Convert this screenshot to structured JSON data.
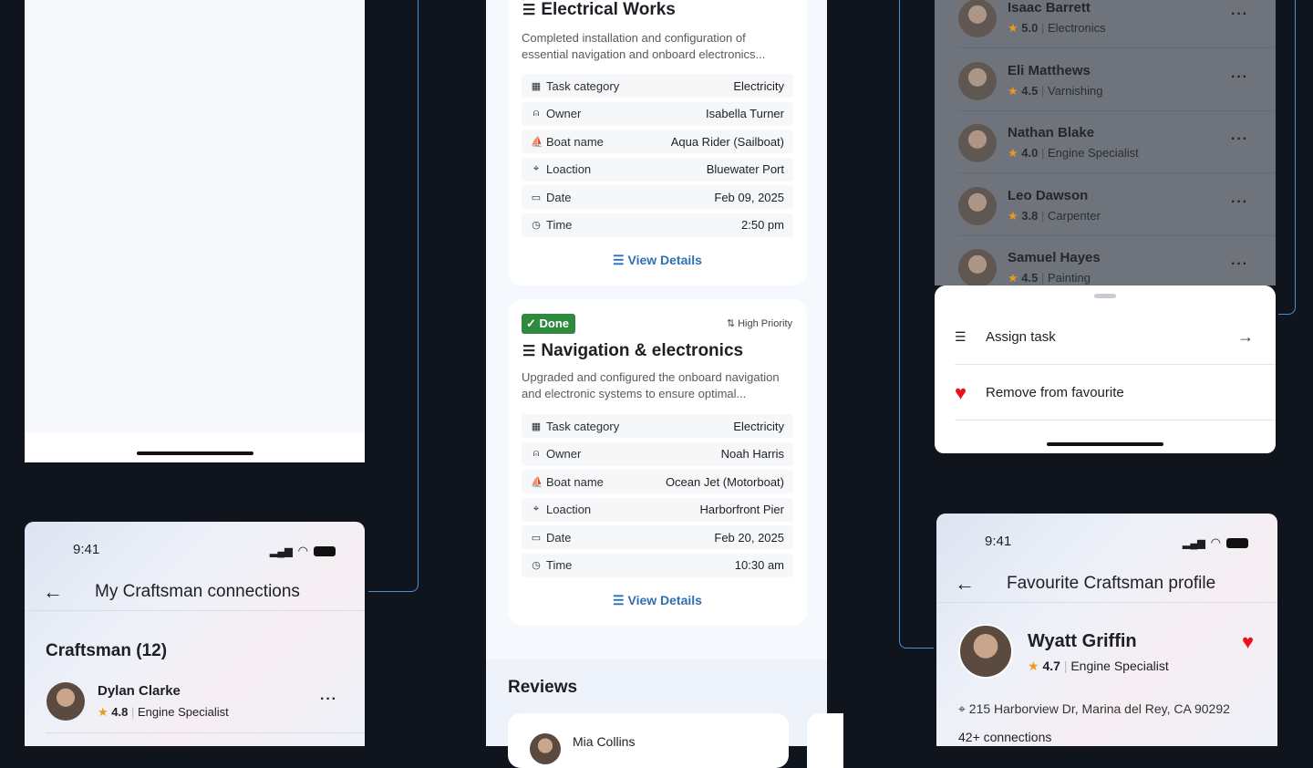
{
  "connections_screen": {
    "time": "9:41",
    "title": "My Craftsman connections",
    "section": "Craftsman (12)",
    "items": [
      {
        "name": "Dylan Clarke",
        "rating": "4.8",
        "specialty": "Engine Specialist"
      }
    ]
  },
  "tasks": [
    {
      "title": "Electrical Works",
      "description": "Completed installation and configuration of essential navigation and onboard electronics...",
      "rows": [
        {
          "label": "Task category",
          "value": "Electricity"
        },
        {
          "label": "Owner",
          "value": "Isabella Turner"
        },
        {
          "label": "Boat name",
          "value": "Aqua Rider (Sailboat)"
        },
        {
          "label": "Loaction",
          "value": "Bluewater Port"
        },
        {
          "label": "Date",
          "value": "Feb 09, 2025"
        },
        {
          "label": "Time",
          "value": "2:50 pm"
        }
      ],
      "link": "View Details"
    },
    {
      "status": "Done",
      "priority": "High Priority",
      "title": "Navigation & electronics",
      "description": "Upgraded and configured the onboard navigation and electronic systems to ensure optimal...",
      "rows": [
        {
          "label": "Task category",
          "value": "Electricity"
        },
        {
          "label": "Owner",
          "value": "Noah Harris"
        },
        {
          "label": "Boat name",
          "value": "Ocean Jet (Motorboat)"
        },
        {
          "label": "Loaction",
          "value": "Harborfront Pier"
        },
        {
          "label": "Date",
          "value": "Feb 20, 2025"
        },
        {
          "label": "Time",
          "value": "10:30 am"
        }
      ],
      "link": "View Details"
    }
  ],
  "reviews": {
    "title": "Reviews",
    "items": [
      {
        "name": "Mia Collins"
      }
    ]
  },
  "favourites_list": [
    {
      "name": "Isaac Barrett",
      "rating": "5.0",
      "specialty": "Electronics"
    },
    {
      "name": "Eli Matthews",
      "rating": "4.5",
      "specialty": "Varnishing"
    },
    {
      "name": "Nathan Blake",
      "rating": "4.0",
      "specialty": "Engine Specialist"
    },
    {
      "name": "Leo Dawson",
      "rating": "3.8",
      "specialty": "Carpenter"
    },
    {
      "name": "Samuel Hayes",
      "rating": "4.5",
      "specialty": "Painting"
    }
  ],
  "sheet": {
    "assign": "Assign task",
    "remove": "Remove from favourite"
  },
  "profile": {
    "time": "9:41",
    "title": "Favourite Craftsman profile",
    "name": "Wyatt Griffin",
    "rating": "4.7",
    "specialty": "Engine Specialist",
    "address": "215 Harborview Dr, Marina del Rey, CA 90292",
    "connections": "42+ connections"
  },
  "colors": {
    "accent": "#2f6fb5",
    "done": "#2e8b3e",
    "heart": "#e8141b",
    "star": "#f29a1a",
    "connector": "#4a8fd6"
  }
}
